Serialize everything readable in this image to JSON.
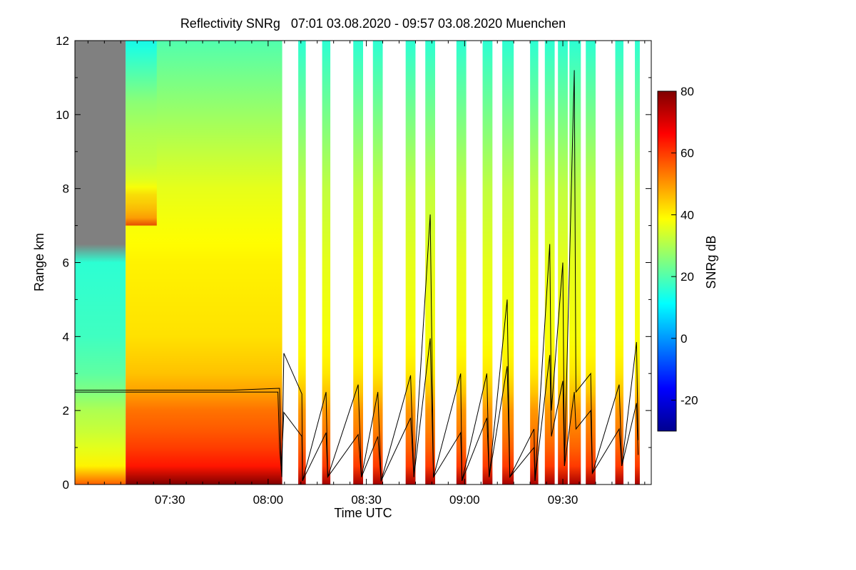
{
  "chart_data": {
    "type": "heatmap",
    "title": "Reflectivity SNRg   07:01 03.08.2020 - 09:57 03.08.2020 Muenchen",
    "xlabel": "Time UTC",
    "ylabel": "Range km",
    "colorbar_label": "SNRg dB",
    "x_range_minutes_utc": [
      421,
      597
    ],
    "ylim": [
      0,
      12
    ],
    "clim": [
      -30,
      80
    ],
    "x_ticks": [
      {
        "t": 450,
        "label": "07:30"
      },
      {
        "t": 480,
        "label": "08:00"
      },
      {
        "t": 510,
        "label": "08:30"
      },
      {
        "t": 540,
        "label": "09:00"
      },
      {
        "t": 570,
        "label": "09:30"
      }
    ],
    "y_ticks": [
      0,
      2,
      4,
      6,
      8,
      10,
      12
    ],
    "colorbar_ticks": [
      -20,
      0,
      20,
      40,
      60,
      80
    ],
    "colormap": [
      "#00008f",
      "#0000ff",
      "#0080ff",
      "#00ffff",
      "#80ff80",
      "#ffff00",
      "#ff8000",
      "#ff0000",
      "#800000"
    ],
    "no_signal_color": "#808080",
    "data_segments": [
      {
        "start": 421.0,
        "end": 484.3,
        "profile": "continuous"
      },
      {
        "start": 489.2,
        "end": 491.5,
        "profile": "narrow"
      },
      {
        "start": 496.5,
        "end": 499.0,
        "profile": "narrow"
      },
      {
        "start": 506.0,
        "end": 509.0,
        "profile": "narrow"
      },
      {
        "start": 512.0,
        "end": 515.0,
        "profile": "narrow"
      },
      {
        "start": 522.0,
        "end": 525.0,
        "profile": "narrow"
      },
      {
        "start": 528.0,
        "end": 531.0,
        "profile": "narrow"
      },
      {
        "start": 537.5,
        "end": 540.5,
        "profile": "narrow"
      },
      {
        "start": 545.5,
        "end": 548.5,
        "profile": "narrow"
      },
      {
        "start": 551.5,
        "end": 555.0,
        "profile": "narrow"
      },
      {
        "start": 560.0,
        "end": 562.5,
        "profile": "narrow"
      },
      {
        "start": 564.5,
        "end": 567.5,
        "profile": "narrow"
      },
      {
        "start": 568.5,
        "end": 571.5,
        "profile": "narrow"
      },
      {
        "start": 572.0,
        "end": 575.5,
        "profile": "narrow"
      },
      {
        "start": 577.0,
        "end": 580.0,
        "profile": "narrow"
      },
      {
        "start": 586.0,
        "end": 588.5,
        "profile": "narrow"
      },
      {
        "start": 592.0,
        "end": 593.5,
        "profile": "narrow"
      }
    ],
    "lines": [
      {
        "name": "",
        "points": [
          [
            421,
            2.5
          ],
          [
            434,
            2.5
          ],
          [
            448,
            2.5
          ],
          [
            469,
            2.5
          ],
          [
            483,
            2.5
          ],
          [
            483.5,
            1.0
          ],
          [
            484.2,
            0.2
          ],
          [
            484.8,
            3.55
          ],
          [
            490.3,
            2.45
          ],
          [
            490.5,
            0.1
          ],
          [
            497.7,
            2.5
          ],
          [
            498.2,
            0.2
          ],
          [
            507.5,
            2.7
          ],
          [
            508.5,
            0.2
          ],
          [
            513.5,
            2.5
          ],
          [
            514.5,
            0.1
          ],
          [
            523.5,
            2.95
          ],
          [
            524.5,
            0.2
          ],
          [
            529.5,
            7.3
          ],
          [
            530.5,
            0.2
          ],
          [
            538.8,
            3.0
          ],
          [
            539.2,
            0.1
          ],
          [
            546.8,
            3.0
          ],
          [
            547.5,
            0.2
          ],
          [
            553.0,
            5.0
          ],
          [
            553.8,
            0.2
          ],
          [
            561.2,
            1.0
          ],
          [
            561.5,
            0.1
          ],
          [
            566.0,
            6.5
          ],
          [
            566.5,
            2.0
          ],
          [
            570.0,
            6.0
          ],
          [
            570.5,
            0.5
          ],
          [
            573.5,
            11.2
          ],
          [
            574.0,
            2.5
          ],
          [
            578.5,
            3.0
          ],
          [
            579.0,
            0.3
          ],
          [
            587.2,
            2.7
          ],
          [
            588.0,
            0.5
          ],
          [
            592.5,
            3.85
          ],
          [
            593.0,
            1.2
          ]
        ]
      },
      {
        "name": "",
        "points": [
          [
            421,
            2.55
          ],
          [
            434,
            2.55
          ],
          [
            448,
            2.55
          ],
          [
            469,
            2.55
          ],
          [
            483.5,
            2.6
          ],
          [
            484.0,
            0.4
          ],
          [
            484.8,
            1.95
          ],
          [
            490.3,
            1.3
          ],
          [
            490.5,
            0.1
          ],
          [
            497.7,
            1.4
          ],
          [
            498.2,
            0.2
          ],
          [
            507.5,
            1.35
          ],
          [
            508.5,
            0.2
          ],
          [
            513.5,
            1.3
          ],
          [
            514.5,
            0.1
          ],
          [
            523.5,
            1.8
          ],
          [
            524.5,
            0.2
          ],
          [
            529.5,
            3.95
          ],
          [
            530.5,
            0.2
          ],
          [
            538.8,
            1.4
          ],
          [
            539.2,
            0.1
          ],
          [
            546.8,
            1.8
          ],
          [
            547.5,
            0.2
          ],
          [
            553.0,
            3.2
          ],
          [
            553.8,
            0.2
          ],
          [
            561.2,
            1.5
          ],
          [
            561.5,
            0.1
          ],
          [
            566.0,
            3.5
          ],
          [
            566.5,
            1.3
          ],
          [
            570.0,
            2.8
          ],
          [
            570.5,
            0.5
          ],
          [
            573.5,
            2.5
          ],
          [
            574.0,
            1.5
          ],
          [
            578.5,
            2.0
          ],
          [
            579.0,
            0.3
          ],
          [
            587.2,
            1.5
          ],
          [
            588.0,
            0.5
          ],
          [
            592.5,
            2.2
          ],
          [
            593.0,
            0.8
          ]
        ]
      }
    ]
  }
}
